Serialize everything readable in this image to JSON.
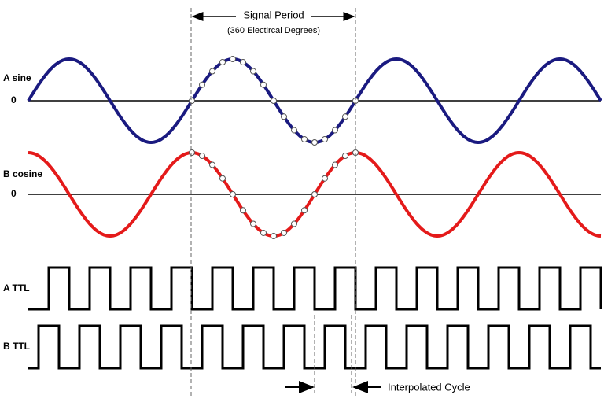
{
  "header": {
    "title": "Signal Period",
    "subtitle": "(360 Electircal Degrees)"
  },
  "labels": {
    "a_sine": "A sine",
    "a_zero": "0",
    "b_cosine": "B cosine",
    "b_zero": "0",
    "a_ttl": "A TTL",
    "b_ttl": "B TTL",
    "interpolated": "Interpolated Cycle"
  }
}
